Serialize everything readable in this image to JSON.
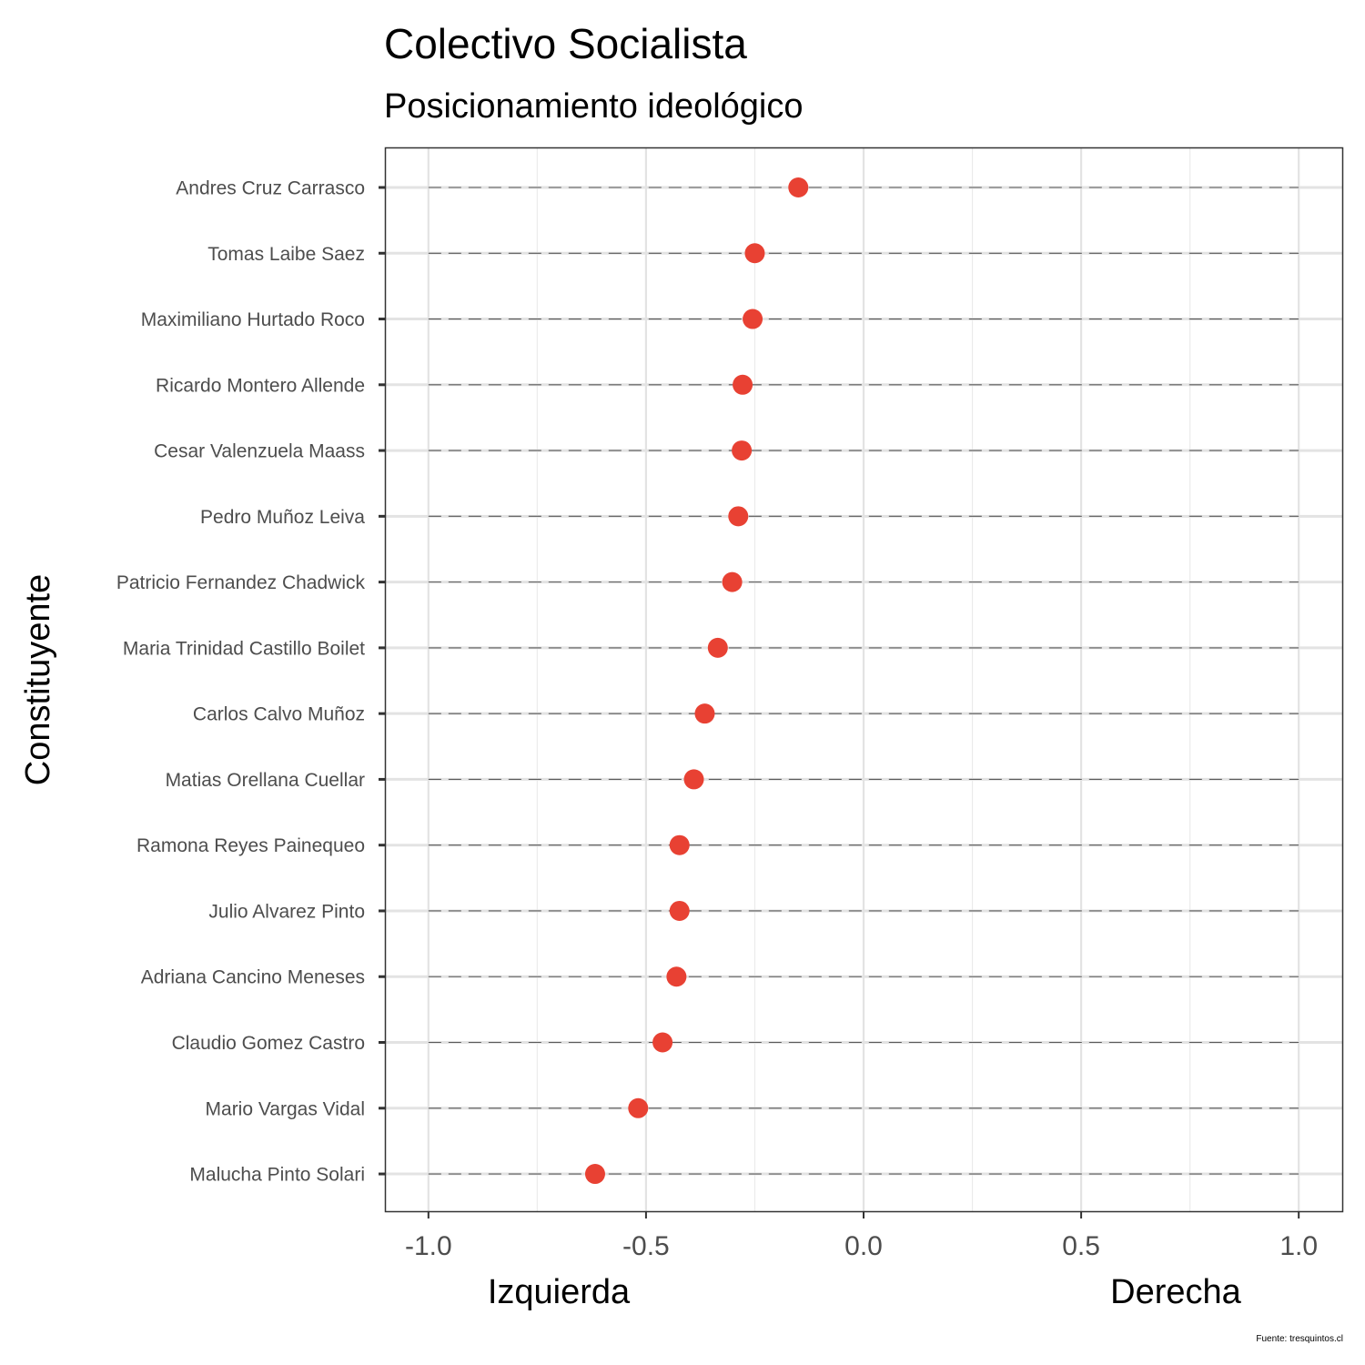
{
  "chart_data": {
    "type": "scatter",
    "title": "Colectivo Socialista",
    "subtitle": "Posicionamiento ideológico",
    "ylabel": "Constituyente",
    "xlabel_left": "Izquierda",
    "xlabel_right": "Derecha",
    "caption": "Fuente: tresquintos.cl",
    "xlim": [
      -1.1,
      1.1
    ],
    "xticks": [
      -1.0,
      -0.5,
      0.0,
      0.5,
      1.0
    ],
    "xtick_labels": [
      "-1.0",
      "-0.5",
      "0.0",
      "0.5",
      "1.0"
    ],
    "grid": true,
    "point_color": "#E84133",
    "categories": [
      "Andres Cruz Carrasco",
      "Tomas Laibe Saez",
      "Maximiliano Hurtado Roco",
      "Ricardo Montero Allende",
      "Cesar Valenzuela Maass",
      "Pedro Muñoz Leiva",
      "Patricio Fernandez Chadwick",
      "Maria Trinidad Castillo Boilet",
      "Carlos Calvo Muñoz",
      "Matias Orellana Cuellar",
      "Ramona Reyes Painequeo",
      "Julio Alvarez Pinto",
      "Adriana Cancino Meneses",
      "Claudio Gomez Castro",
      "Mario Vargas Vidal",
      "Malucha Pinto Solari"
    ],
    "values": [
      -0.15,
      -0.25,
      -0.255,
      -0.278,
      -0.28,
      -0.288,
      -0.302,
      -0.335,
      -0.365,
      -0.39,
      -0.423,
      -0.423,
      -0.43,
      -0.462,
      -0.518,
      -0.617
    ]
  }
}
